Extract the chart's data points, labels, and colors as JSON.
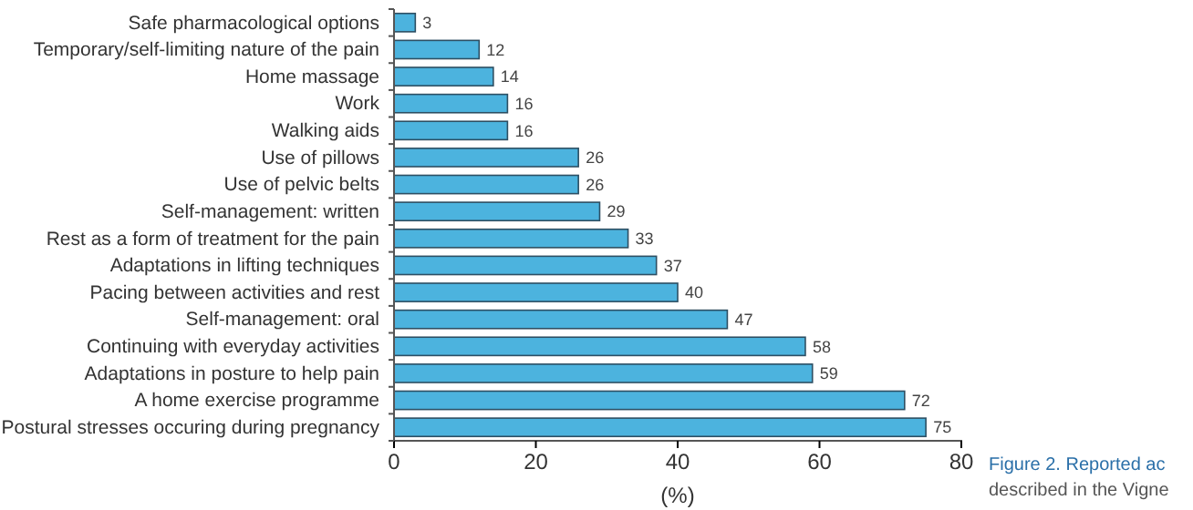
{
  "chart_data": {
    "type": "bar",
    "orientation": "horizontal",
    "xlabel": "(%)",
    "categories": [
      "Safe pharmacological options",
      "Temporary/self-limiting nature of the pain",
      "Home massage",
      "Work",
      "Walking aids",
      "Use of pillows",
      "Use of pelvic belts",
      "Self-management: written",
      "Rest as a form of treatment for the pain",
      "Adaptations in lifting techniques",
      "Pacing between activities and rest",
      "Self-management: oral",
      "Continuing with everyday activities",
      "Adaptations in posture to help pain",
      "A home exercise programme",
      "Postural stresses occuring during pregnancy"
    ],
    "values": [
      3,
      12,
      14,
      16,
      16,
      26,
      26,
      29,
      33,
      37,
      40,
      47,
      58,
      59,
      72,
      75
    ],
    "color": "#4cb3de",
    "xlim": [
      0,
      80
    ],
    "xticks": [
      0,
      20,
      40,
      60,
      80
    ],
    "grid": false,
    "data_labels": true,
    "annotations": [
      "Figure 2. Reported ac",
      "described in the Vigne"
    ]
  }
}
